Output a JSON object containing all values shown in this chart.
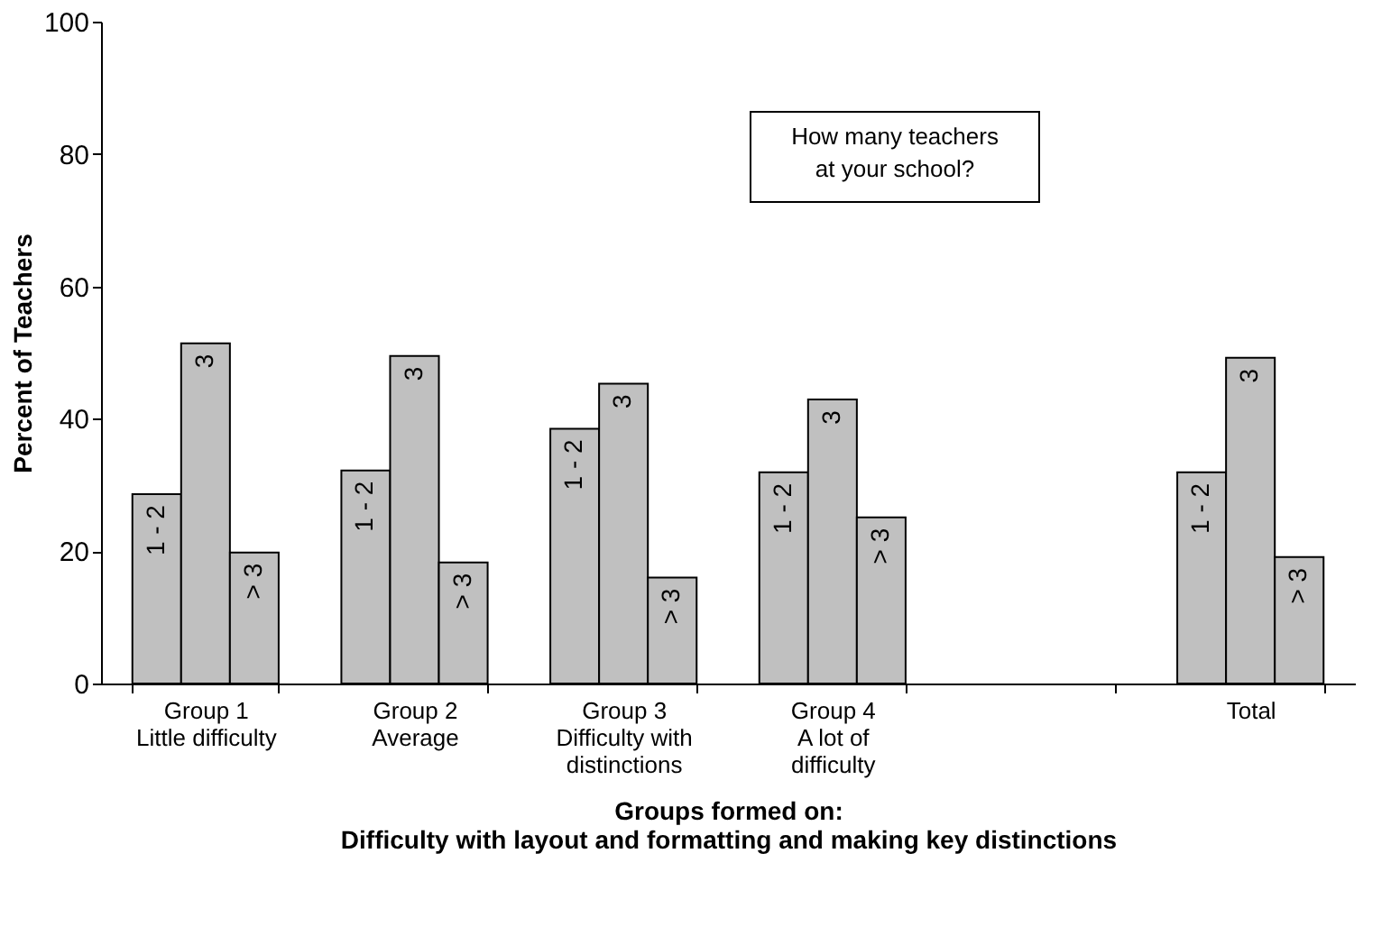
{
  "chart_data": {
    "type": "bar",
    "categories": [
      "Group 1\nLittle difficulty",
      "Group 2\nAverage",
      "Group 3\nDifficulty with\ndistinctions",
      "Group 4\nA lot of\ndifficulty",
      null,
      "Total"
    ],
    "series": [
      {
        "name": "1 - 2",
        "color": "#c0c0c0",
        "values": [
          28.6,
          32.2,
          38.5,
          31.9,
          null,
          31.9
        ]
      },
      {
        "name": "3",
        "color": "#c0c0c0",
        "values": [
          51.4,
          49.5,
          45.3,
          42.9,
          null,
          49.2
        ]
      },
      {
        "name": "> 3",
        "color": "#c0c0c0",
        "values": [
          19.8,
          18.3,
          16.0,
          25.1,
          null,
          19.1
        ]
      }
    ],
    "xlabel": "Groups formed on:\nDifficulty with layout and formatting and making key distinctions",
    "ylabel": "Percent of Teachers",
    "ylim": [
      0,
      100
    ],
    "yticks": [
      0,
      20,
      40,
      60,
      80,
      100
    ],
    "annotations": [
      "How many teachers\nat your school?"
    ],
    "grid": false,
    "legend": false
  }
}
